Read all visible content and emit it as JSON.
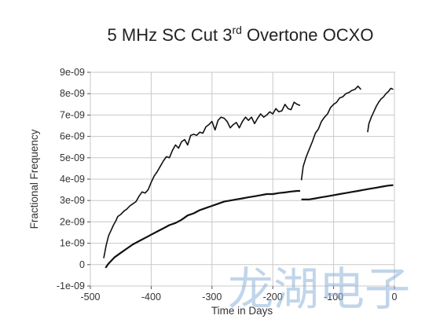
{
  "chart_data": {
    "type": "line",
    "title": {
      "main": "5 MHz SC Cut 3",
      "superscript": "rd",
      "rest": " Overtone OCXO"
    },
    "xlabel": "Time in Days",
    "ylabel": "Fractional Frequency",
    "xlim": [
      -500,
      0
    ],
    "ylim": [
      -1e-09,
      9e-09
    ],
    "x_ticks": [
      -500,
      -400,
      -300,
      -200,
      -100,
      0
    ],
    "x_tick_labels": [
      "-500",
      "-400",
      "-300",
      "-200",
      "-100",
      "0"
    ],
    "y_ticks": [
      -1e-09,
      0,
      1e-09,
      2e-09,
      3e-09,
      4e-09,
      5e-09,
      6e-09,
      7e-09,
      8e-09,
      9e-09
    ],
    "y_tick_labels": [
      "-1e-09",
      "0",
      "1e-09",
      "2e-09",
      "3e-09",
      "4e-09",
      "5e-09",
      "6e-09",
      "7e-09",
      "8e-09",
      "9e-09"
    ],
    "grid": true,
    "line_color": "#111111",
    "series": [
      {
        "segments": [
          {
            "x": [
              -478,
              -474,
              -470,
              -466,
              -462,
              -458,
              -455,
              -450,
              -445,
              -440,
              -435,
              -430,
              -425,
              -420,
              -415,
              -410,
              -405,
              -400,
              -395,
              -390,
              -385,
              -380,
              -375,
              -370,
              -365,
              -360,
              -355,
              -350,
              -345,
              -340,
              -335,
              -330,
              -325,
              -320,
              -315,
              -310,
              -305,
              -300,
              -295,
              -290,
              -285,
              -280,
              -275,
              -270,
              -265,
              -260,
              -255,
              -250,
              -245,
              -240,
              -235,
              -230,
              -225,
              -220,
              -215,
              -210,
              -205,
              -200,
              -195,
              -190,
              -185,
              -180,
              -175,
              -170,
              -165,
              -160,
              -155
            ],
            "y": [
              3e-10,
              9e-10,
              1.35e-09,
              1.6e-09,
              1.85e-09,
              2.05e-09,
              2.25e-09,
              2.35e-09,
              2.5e-09,
              2.6e-09,
              2.75e-09,
              2.85e-09,
              2.95e-09,
              3.2e-09,
              3.4e-09,
              3.35e-09,
              3.5e-09,
              3.85e-09,
              4.15e-09,
              4.35e-09,
              4.6e-09,
              4.85e-09,
              5.05e-09,
              5e-09,
              5.35e-09,
              5.6e-09,
              5.45e-09,
              5.75e-09,
              5.85e-09,
              5.6e-09,
              6.05e-09,
              6.1e-09,
              6.05e-09,
              6.2e-09,
              6.15e-09,
              6.45e-09,
              6.55e-09,
              6.7e-09,
              6.3e-09,
              6.75e-09,
              6.9e-09,
              6.85e-09,
              6.7e-09,
              6.4e-09,
              6.55e-09,
              6.65e-09,
              6.4e-09,
              6.7e-09,
              6.9e-09,
              6.75e-09,
              6.9e-09,
              6.6e-09,
              6.85e-09,
              7.05e-09,
              6.9e-09,
              7e-09,
              7.15e-09,
              7.05e-09,
              7.3e-09,
              7.15e-09,
              7.2e-09,
              7.5e-09,
              7.3e-09,
              7.25e-09,
              7.6e-09,
              7.5e-09,
              7.45e-09
            ]
          },
          {
            "x": [
              -153,
              -150,
              -145,
              -140,
              -135,
              -130,
              -125,
              -120,
              -115,
              -110,
              -105,
              -100,
              -95,
              -90,
              -85,
              -80,
              -75,
              -70,
              -65,
              -60,
              -55
            ],
            "y": [
              3.95e-09,
              4.6e-09,
              5.05e-09,
              5.4e-09,
              5.75e-09,
              6.15e-09,
              6.35e-09,
              6.7e-09,
              6.9e-09,
              7.05e-09,
              7.35e-09,
              7.5e-09,
              7.6e-09,
              7.8e-09,
              7.85e-09,
              8e-09,
              8.05e-09,
              8.15e-09,
              8.2e-09,
              8.35e-09,
              8.2e-09
            ]
          },
          {
            "x": [
              -44,
              -42,
              -38,
              -34,
              -30,
              -26,
              -22,
              -18,
              -14,
              -10,
              -6,
              -2
            ],
            "y": [
              6.2e-09,
              6.6e-09,
              6.9e-09,
              7.15e-09,
              7.4e-09,
              7.6e-09,
              7.75e-09,
              7.85e-09,
              8e-09,
              8.1e-09,
              8.25e-09,
              8.2e-09
            ]
          }
        ]
      },
      {
        "segments": [
          {
            "x": [
              -475,
              -470,
              -465,
              -460,
              -450,
              -440,
              -430,
              -420,
              -410,
              -400,
              -390,
              -380,
              -370,
              -360,
              -350,
              -340,
              -330,
              -320,
              -310,
              -300,
              -290,
              -280,
              -270,
              -260,
              -250,
              -240,
              -230,
              -220,
              -210,
              -200,
              -190,
              -180,
              -170,
              -160,
              -155
            ],
            "y": [
              -1.5e-10,
              5e-11,
              2e-10,
              3.5e-10,
              5.5e-10,
              7.5e-10,
              9.5e-10,
              1.1e-09,
              1.25e-09,
              1.4e-09,
              1.55e-09,
              1.7e-09,
              1.85e-09,
              1.95e-09,
              2.1e-09,
              2.3e-09,
              2.4e-09,
              2.55e-09,
              2.65e-09,
              2.75e-09,
              2.85e-09,
              2.95e-09,
              3e-09,
              3.05e-09,
              3.1e-09,
              3.15e-09,
              3.2e-09,
              3.25e-09,
              3.3e-09,
              3.3e-09,
              3.35e-09,
              3.38e-09,
              3.42e-09,
              3.45e-09,
              3.45e-09
            ]
          },
          {
            "x": [
              -153,
              -150,
              -140,
              -130,
              -120,
              -110,
              -100,
              -90,
              -80,
              -70,
              -60,
              -50,
              -40,
              -30,
              -20,
              -10,
              -2
            ],
            "y": [
              3.05e-09,
              3.05e-09,
              3.05e-09,
              3.1e-09,
              3.15e-09,
              3.2e-09,
              3.25e-09,
              3.3e-09,
              3.35e-09,
              3.4e-09,
              3.45e-09,
              3.5e-09,
              3.55e-09,
              3.6e-09,
              3.65e-09,
              3.7e-09,
              3.72e-09
            ]
          }
        ]
      }
    ]
  },
  "watermark": {
    "text": "龙湖电子",
    "color": "#8fb3d9"
  }
}
